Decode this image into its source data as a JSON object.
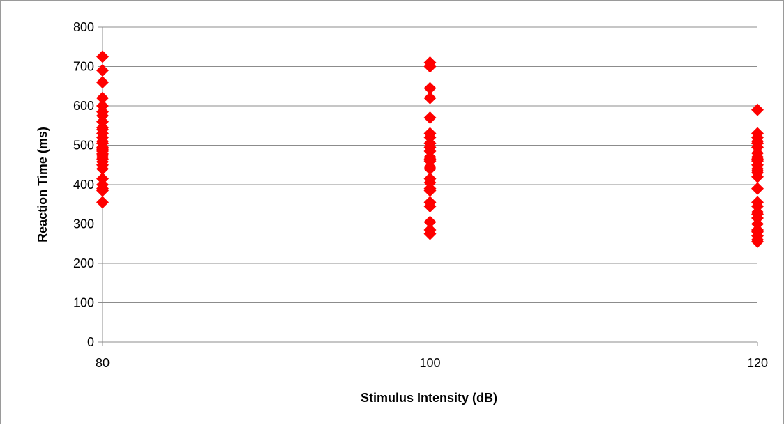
{
  "chart_data": {
    "type": "scatter",
    "title": "",
    "xlabel": "Stimulus Intensity (dB)",
    "ylabel": "Reaction Time (ms)",
    "xlim": [
      80,
      120
    ],
    "ylim": [
      0,
      800
    ],
    "x_ticks": [
      80,
      100,
      120
    ],
    "y_ticks": [
      0,
      100,
      200,
      300,
      400,
      500,
      600,
      700,
      800
    ],
    "grid": "horizontal",
    "legend": "none",
    "marker": "diamond",
    "marker_color": "#ff0000",
    "series": [
      {
        "x": [
          80,
          80,
          80,
          80,
          80,
          80,
          80,
          80,
          80,
          80,
          80,
          80,
          80,
          80,
          80,
          80,
          80,
          80,
          80,
          80,
          80,
          80,
          80,
          80,
          80,
          80,
          80,
          80,
          80
        ],
        "y": [
          725,
          690,
          660,
          620,
          585,
          575,
          560,
          545,
          530,
          520,
          505,
          495,
          490,
          485,
          478,
          470,
          465,
          458,
          450,
          415,
          400,
          390,
          385,
          355,
          600,
          540,
          510,
          475,
          440
        ]
      },
      {
        "x": [
          100,
          100,
          100,
          100,
          100,
          100,
          100,
          100,
          100,
          100,
          100,
          100,
          100,
          100,
          100,
          100,
          100,
          100,
          100,
          100,
          100,
          100,
          100,
          100
        ],
        "y": [
          710,
          700,
          645,
          620,
          570,
          530,
          520,
          505,
          495,
          485,
          470,
          465,
          445,
          440,
          415,
          405,
          390,
          385,
          355,
          345,
          305,
          285,
          275,
          460
        ]
      },
      {
        "x": [
          120,
          120,
          120,
          120,
          120,
          120,
          120,
          120,
          120,
          120,
          120,
          120,
          120,
          120,
          120,
          120,
          120,
          120,
          120,
          120,
          120,
          120,
          120,
          120,
          120,
          120,
          120
        ],
        "y": [
          590,
          530,
          520,
          505,
          495,
          480,
          470,
          460,
          450,
          440,
          435,
          430,
          390,
          355,
          345,
          330,
          315,
          300,
          285,
          280,
          270,
          260,
          255,
          510,
          465,
          420,
          325
        ]
      }
    ]
  }
}
